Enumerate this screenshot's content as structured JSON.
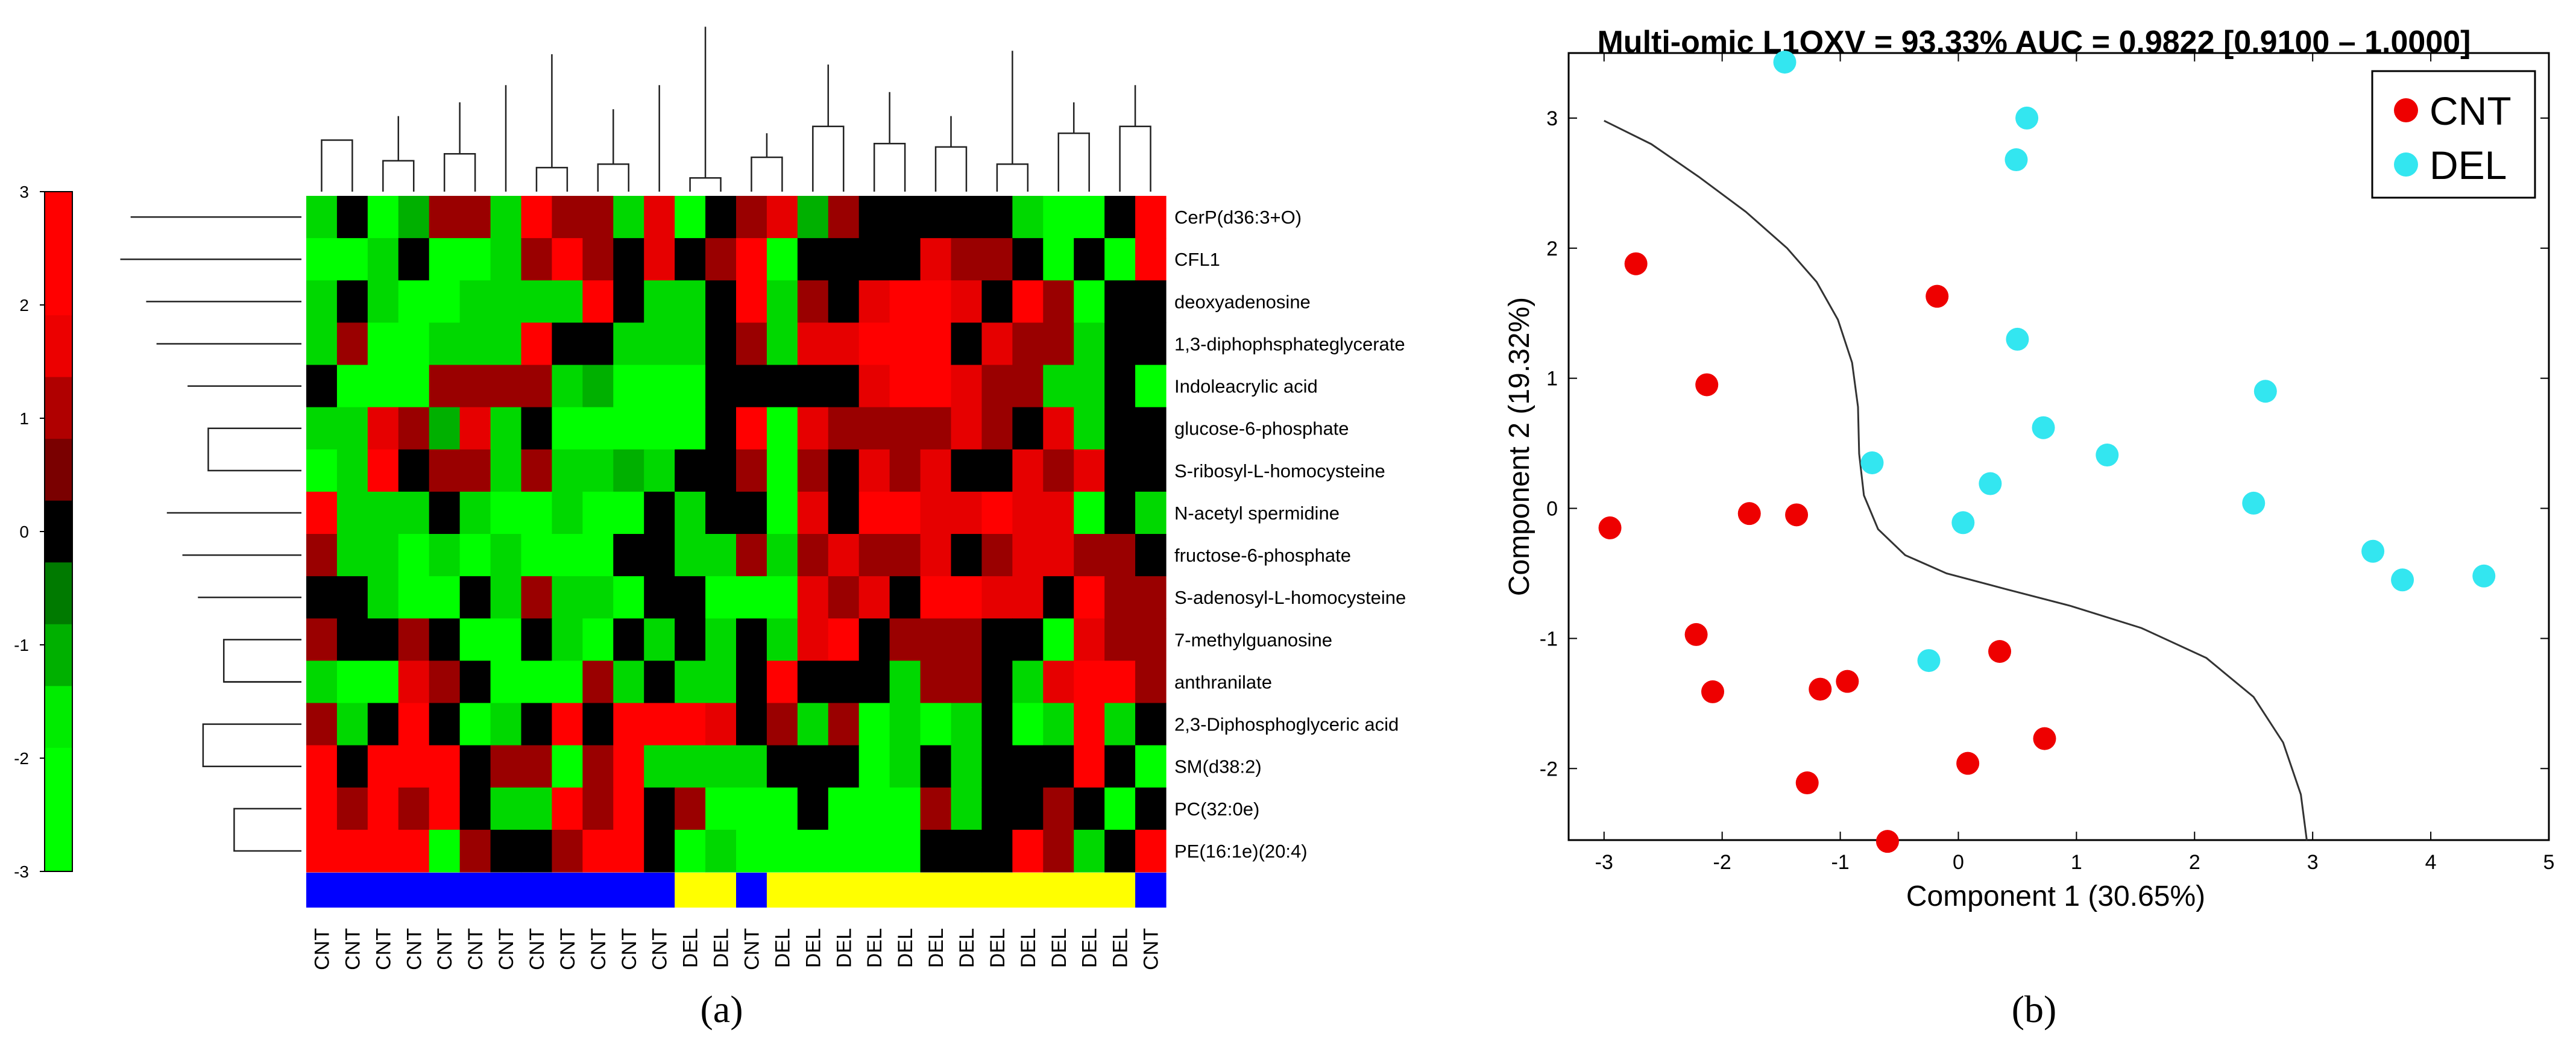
{
  "panels": {
    "a": {
      "label": "(a)",
      "chart_data": {
        "type": "heatmap",
        "title": "",
        "rows": [
          "CerP(d36:3+O)",
          "CFL1",
          "deoxyadenosine",
          "1,3-diphophsphateglycerate",
          "Indoleacrylic acid",
          "glucose-6-phosphate",
          "S-ribosyl-L-homocysteine",
          "N-acetyl spermidine",
          "fructose-6-phosphate",
          "S-adenosyl-L-homocysteine",
          "7-methylguanosine",
          "anthranilate",
          "2,3-Diphosphoglyceric acid",
          "SM(d38:2)",
          "PC(32:0e)",
          "PE(16:1e)(20:4)"
        ],
        "columns": [
          "CNT",
          "CNT",
          "CNT",
          "CNT",
          "CNT",
          "CNT",
          "CNT",
          "CNT",
          "CNT",
          "CNT",
          "CNT",
          "CNT",
          "DEL",
          "DEL",
          "CNT",
          "DEL",
          "DEL",
          "DEL",
          "DEL",
          "DEL",
          "DEL",
          "DEL",
          "DEL",
          "DEL",
          "DEL",
          "DEL",
          "DEL",
          "CNT"
        ],
        "group_bar": [
          "CNT",
          "CNT",
          "CNT",
          "CNT",
          "CNT",
          "CNT",
          "CNT",
          "CNT",
          "CNT",
          "CNT",
          "CNT",
          "CNT",
          "DEL",
          "DEL",
          "CNT",
          "DEL",
          "DEL",
          "DEL",
          "DEL",
          "DEL",
          "DEL",
          "DEL",
          "DEL",
          "DEL",
          "DEL",
          "DEL",
          "DEL",
          "CNT"
        ],
        "group_colors": {
          "CNT": "#0000ff",
          "DEL": "#ffff00"
        },
        "values": [
          [
            -2,
            0,
            -3,
            -1,
            1,
            1,
            -2,
            3,
            1,
            1,
            -2,
            2,
            -3,
            0,
            1,
            2,
            -1,
            1,
            0,
            0,
            0,
            0,
            0,
            -2,
            -3,
            -3,
            0,
            3
          ],
          [
            -3,
            -3,
            -2,
            0,
            -3,
            -3,
            -2,
            1,
            3,
            1,
            0,
            2,
            0,
            1,
            3,
            -3,
            0,
            0,
            0,
            0,
            2,
            1,
            1,
            0,
            -3,
            0,
            -3,
            3
          ],
          [
            -2,
            0,
            -2,
            -3,
            -3,
            -2,
            -2,
            -2,
            -2,
            3,
            0,
            -2,
            -2,
            0,
            3,
            -2,
            1,
            0,
            2,
            3,
            3,
            2,
            0,
            3,
            1,
            -3,
            0,
            0
          ],
          [
            -2,
            1,
            -3,
            -3,
            -2,
            -2,
            -2,
            3,
            0,
            0,
            -2,
            -2,
            -2,
            0,
            1,
            -2,
            2,
            2,
            3,
            3,
            3,
            0,
            2,
            1,
            1,
            -2,
            0,
            0
          ],
          [
            0,
            -3,
            -3,
            -3,
            1,
            1,
            1,
            1,
            -2,
            -1,
            -3,
            -3,
            -3,
            0,
            0,
            0,
            0,
            0,
            2,
            3,
            3,
            2,
            1,
            1,
            -2,
            -2,
            0,
            -3
          ],
          [
            -2,
            -2,
            2,
            1,
            -1,
            2,
            -2,
            0,
            -3,
            -3,
            -3,
            -3,
            -3,
            0,
            3,
            -3,
            2,
            1,
            1,
            1,
            1,
            2,
            1,
            0,
            2,
            -2,
            0,
            0
          ],
          [
            -3,
            -2,
            3,
            0,
            1,
            1,
            -2,
            1,
            -2,
            -2,
            -1,
            -2,
            0,
            0,
            1,
            -3,
            1,
            0,
            2,
            1,
            2,
            0,
            0,
            2,
            1,
            2,
            0,
            0
          ],
          [
            3,
            -2,
            -2,
            -2,
            0,
            -2,
            -3,
            -3,
            -2,
            -3,
            -3,
            0,
            -2,
            0,
            0,
            -3,
            2,
            0,
            3,
            3,
            2,
            2,
            3,
            2,
            2,
            -3,
            0,
            -2
          ],
          [
            1,
            -2,
            -2,
            -3,
            -2,
            -3,
            -2,
            -3,
            -3,
            -3,
            0,
            0,
            -2,
            -2,
            1,
            -2,
            1,
            2,
            1,
            1,
            2,
            0,
            1,
            2,
            2,
            1,
            1,
            0
          ],
          [
            0,
            0,
            -2,
            -3,
            -3,
            0,
            -2,
            1,
            -2,
            -2,
            -3,
            0,
            0,
            -3,
            -3,
            -3,
            2,
            1,
            2,
            0,
            3,
            3,
            2,
            2,
            0,
            3,
            1,
            1
          ],
          [
            1,
            0,
            0,
            1,
            0,
            -3,
            -3,
            0,
            -2,
            -3,
            0,
            -2,
            0,
            -2,
            0,
            -2,
            2,
            3,
            0,
            1,
            1,
            1,
            0,
            0,
            -3,
            2,
            1,
            1
          ],
          [
            -2,
            -3,
            -3,
            2,
            1,
            0,
            -3,
            -3,
            -3,
            1,
            -2,
            0,
            -2,
            -2,
            0,
            3,
            0,
            0,
            0,
            -2,
            1,
            1,
            0,
            -2,
            2,
            3,
            3,
            1
          ],
          [
            1,
            -2,
            0,
            3,
            0,
            -3,
            -2,
            0,
            3,
            0,
            3,
            3,
            3,
            2,
            0,
            1,
            -2,
            1,
            -3,
            -2,
            -3,
            -2,
            0,
            -3,
            -2,
            3,
            -2,
            0
          ],
          [
            3,
            0,
            3,
            3,
            3,
            0,
            1,
            1,
            -3,
            1,
            3,
            -2,
            -2,
            -2,
            -2,
            0,
            0,
            0,
            -3,
            -2,
            0,
            -2,
            0,
            0,
            0,
            3,
            0,
            -3
          ],
          [
            3,
            1,
            3,
            1,
            3,
            0,
            -2,
            -2,
            3,
            1,
            3,
            0,
            1,
            -3,
            -3,
            -3,
            0,
            -3,
            -3,
            -3,
            1,
            -2,
            0,
            0,
            1,
            0,
            -3,
            0
          ],
          [
            3,
            3,
            3,
            3,
            -3,
            1,
            0,
            0,
            1,
            3,
            3,
            0,
            -3,
            -2,
            -3,
            -3,
            -3,
            -3,
            -3,
            -3,
            0,
            0,
            0,
            3,
            1,
            -2,
            0,
            3
          ]
        ],
        "colorbar": {
          "ticks": [
            3,
            2,
            1,
            0,
            -1,
            -2,
            -3
          ],
          "colors": [
            "#ff0000",
            "#ff0000",
            "#ec0000",
            "#b00000",
            "#7a0000",
            "#000000",
            "#007a00",
            "#00b000",
            "#00ec00",
            "#00ff00",
            "#00ff00"
          ]
        },
        "row_dendrogram": [
          [
            1,
            14,
            15,
            26
          ],
          [
            1,
            12,
            13,
            38
          ],
          [
            1,
            10,
            11,
            30
          ],
          [
            1,
            9,
            32,
            40
          ],
          [
            1,
            8,
            33,
            46
          ],
          [
            1,
            5,
            6,
            36
          ],
          [
            1,
            4,
            37,
            44
          ],
          [
            1,
            7,
            45,
            52
          ],
          [
            1,
            3,
            53,
            56
          ],
          [
            1,
            2,
            57,
            60
          ],
          [
            1,
            0,
            61,
            66
          ],
          [
            1,
            1,
            67,
            70
          ],
          [
            1,
            11,
            71,
            30
          ],
          [
            1,
            73,
            75,
            44
          ],
          [
            1,
            74,
            76,
            60
          ],
          [
            1,
            43,
            77,
            82
          ]
        ],
        "col_dendrogram": [
          [
            0,
            0,
            1,
            30
          ],
          [
            0,
            2,
            3,
            18
          ],
          [
            0,
            101,
            102,
            44
          ],
          [
            0,
            4,
            5,
            22
          ],
          [
            0,
            103,
            104,
            52
          ],
          [
            0,
            6,
            105,
            62
          ],
          [
            0,
            7,
            8,
            14
          ],
          [
            0,
            9,
            10,
            16
          ],
          [
            0,
            107,
            108,
            48
          ],
          [
            0,
            11,
            109,
            62
          ],
          [
            0,
            106,
            110,
            80
          ],
          [
            0,
            12,
            13,
            8
          ],
          [
            0,
            14,
            15,
            20
          ],
          [
            0,
            112,
            113,
            34
          ],
          [
            0,
            16,
            17,
            38
          ],
          [
            0,
            18,
            19,
            28
          ],
          [
            0,
            20,
            21,
            26
          ],
          [
            0,
            116,
            117,
            44
          ],
          [
            0,
            115,
            118,
            58
          ],
          [
            0,
            114,
            119,
            74
          ],
          [
            0,
            22,
            23,
            16
          ],
          [
            0,
            24,
            25,
            34
          ],
          [
            0,
            121,
            122,
            52
          ],
          [
            0,
            26,
            27,
            38
          ],
          [
            0,
            123,
            124,
            62
          ],
          [
            0,
            120,
            125,
            82
          ],
          [
            0,
            111,
            126,
            96
          ],
          [
            0,
            127,
            128,
            100
          ]
        ]
      }
    },
    "b": {
      "label": "(b)",
      "chart_data": {
        "type": "scatter",
        "title": "Multi-omic L1OXV = 93.33% AUC = 0.9822 [0.9100 – 1.0000]",
        "xlabel": "Component 1 (30.65%)",
        "ylabel": "Component 2 (19.32%)",
        "xlim": [
          -3.3,
          5
        ],
        "ylim": [
          -2.55,
          3.5
        ],
        "xticks": [
          -3,
          -2,
          -1,
          0,
          1,
          2,
          3,
          4,
          5
        ],
        "yticks": [
          -2,
          -1,
          0,
          1,
          2,
          3
        ],
        "grid": false,
        "legend_position": "top-right",
        "series": [
          {
            "name": "CNT",
            "color": "#ee0000",
            "points": [
              [
                -2.73,
                1.88
              ],
              [
                -2.95,
                -0.15
              ],
              [
                -2.13,
                0.95
              ],
              [
                -1.77,
                -0.04
              ],
              [
                -1.37,
                -0.05
              ],
              [
                -2.22,
                -0.97
              ],
              [
                -2.08,
                -1.41
              ],
              [
                -1.17,
                -1.39
              ],
              [
                -0.94,
                -1.33
              ],
              [
                -1.28,
                -2.11
              ],
              [
                -0.6,
                -2.56
              ],
              [
                -0.18,
                1.63
              ],
              [
                0.08,
                -1.96
              ],
              [
                0.35,
                -1.1
              ],
              [
                0.73,
                -1.77
              ]
            ]
          },
          {
            "name": "DEL",
            "color": "#33e6f0",
            "points": [
              [
                -1.47,
                3.43
              ],
              [
                0.58,
                3.0
              ],
              [
                0.49,
                2.68
              ],
              [
                0.5,
                1.3
              ],
              [
                2.6,
                0.9
              ],
              [
                0.72,
                0.62
              ],
              [
                1.26,
                0.41
              ],
              [
                0.27,
                0.19
              ],
              [
                -0.73,
                0.35
              ],
              [
                0.04,
                -0.11
              ],
              [
                2.5,
                0.04
              ],
              [
                3.51,
                -0.33
              ],
              [
                3.76,
                -0.55
              ],
              [
                4.45,
                -0.52
              ],
              [
                -0.25,
                -1.17
              ]
            ]
          }
        ],
        "decision_boundary": [
          [
            -3.0,
            2.98
          ],
          [
            -2.6,
            2.8
          ],
          [
            -2.2,
            2.55
          ],
          [
            -1.8,
            2.28
          ],
          [
            -1.45,
            2.0
          ],
          [
            -1.2,
            1.74
          ],
          [
            -1.02,
            1.45
          ],
          [
            -0.9,
            1.12
          ],
          [
            -0.85,
            0.78
          ],
          [
            -0.84,
            0.42
          ],
          [
            -0.8,
            0.1
          ],
          [
            -0.68,
            -0.16
          ],
          [
            -0.45,
            -0.36
          ],
          [
            -0.1,
            -0.5
          ],
          [
            0.4,
            -0.62
          ],
          [
            0.95,
            -0.75
          ],
          [
            1.55,
            -0.92
          ],
          [
            2.1,
            -1.15
          ],
          [
            2.5,
            -1.45
          ],
          [
            2.75,
            -1.8
          ],
          [
            2.9,
            -2.2
          ],
          [
            2.95,
            -2.55
          ]
        ]
      }
    }
  }
}
